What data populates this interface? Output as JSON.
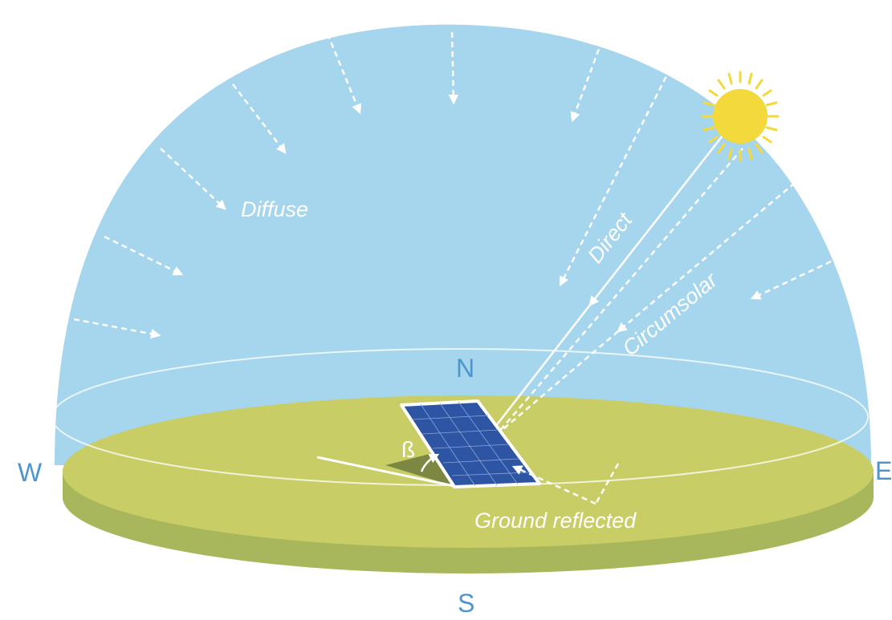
{
  "labels": {
    "diffuse": "Diffuse",
    "direct": "Direct",
    "circumsolar": "Circumsolar",
    "ground_reflected": "Ground reflected",
    "beta": "ß"
  },
  "cardinals": {
    "north": "N",
    "south": "S",
    "west": "W",
    "east": "E"
  },
  "colors": {
    "sky": "#a6d6ed",
    "ground_top": "#c8cd65",
    "ground_side": "#a8b75c",
    "sun": "#f3d93c",
    "panel": "#2d55a3",
    "arrow": "#ffffff",
    "cardinal": "#4f95cd"
  },
  "icons": {
    "sun": "sun-icon",
    "panel": "solar-panel-icon"
  }
}
